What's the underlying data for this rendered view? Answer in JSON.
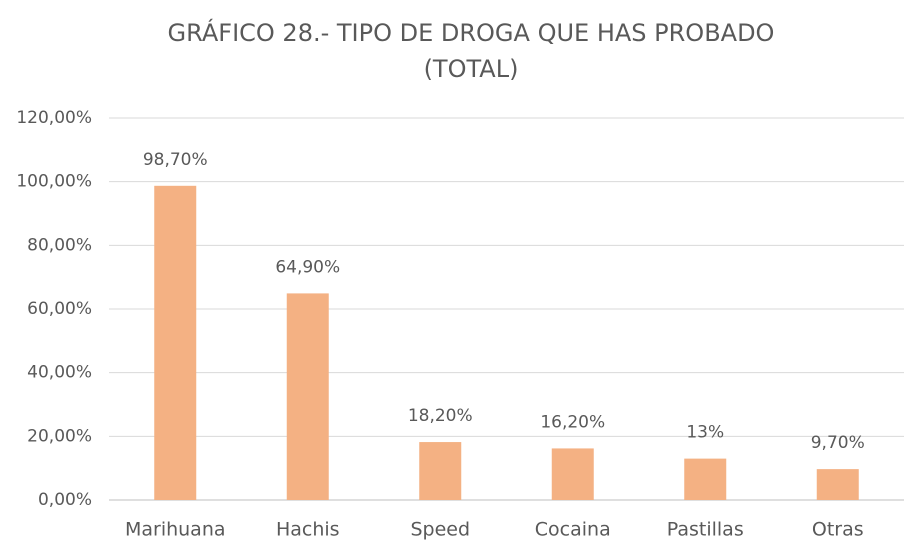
{
  "chart_data": {
    "type": "bar",
    "title": [
      "GRÁFICO 28.- TIPO DE DROGA QUE HAS PROBADO",
      "(TOTAL)"
    ],
    "categories": [
      "Marihuana",
      "Hachis",
      "Speed",
      "Cocaina",
      "Pastillas",
      "Otras"
    ],
    "values": [
      98.7,
      64.9,
      18.2,
      16.2,
      13,
      9.7
    ],
    "value_labels": [
      "98,70%",
      "64,90%",
      "18,20%",
      "16,20%",
      "13%",
      "9,70%"
    ],
    "color": "#f4b183",
    "ylim": [
      0,
      120
    ],
    "yticks": [
      {
        "value": 0,
        "label": "0,00%"
      },
      {
        "value": 20,
        "label": "20,00%"
      },
      {
        "value": 40,
        "label": "40,00%"
      },
      {
        "value": 60,
        "label": "60,00%"
      },
      {
        "value": 80,
        "label": "80,00%"
      },
      {
        "value": 100,
        "label": "100,00%"
      },
      {
        "value": 120,
        "label": "120,00%"
      }
    ],
    "grid": true
  }
}
